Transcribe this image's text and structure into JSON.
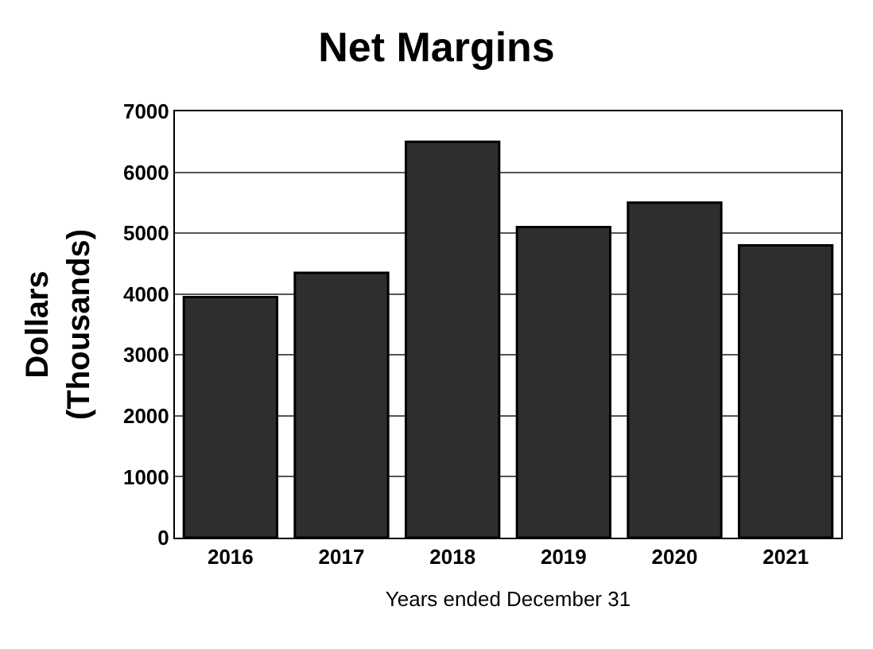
{
  "chart_data": {
    "type": "bar",
    "title": "Net Margins",
    "xlabel": "Years ended December 31",
    "ylabel": "Dollars\n(Thousands)",
    "categories": [
      "2016",
      "2017",
      "2018",
      "2019",
      "2020",
      "2021"
    ],
    "values": [
      3950,
      4350,
      6500,
      5100,
      5500,
      4800
    ],
    "color": "#2e2e2e",
    "ylim": [
      0,
      7000
    ],
    "yticks": [
      0,
      1000,
      2000,
      3000,
      4000,
      5000,
      6000,
      7000
    ],
    "grid": "y"
  }
}
